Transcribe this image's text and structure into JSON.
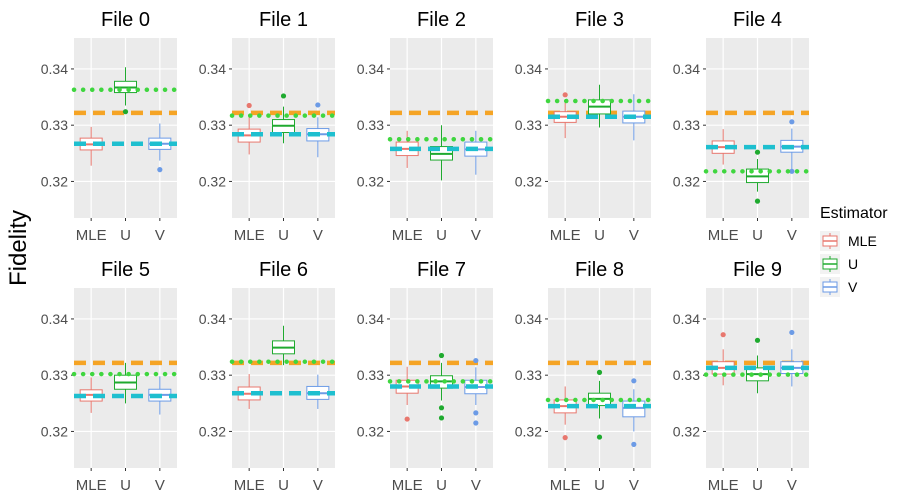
{
  "chart_data": {
    "type": "boxplot",
    "ylabel": "Fidelity",
    "xlabel": "",
    "categories": [
      "MLE",
      "U",
      "V"
    ],
    "ylim": [
      0.3135,
      0.3455
    ],
    "yticks": [
      0.32,
      0.33,
      0.34
    ],
    "ytick_labels": [
      "0.32",
      "0.33",
      "0.34"
    ],
    "legend": {
      "title": "Estimator",
      "position": "right",
      "items": [
        {
          "label": "MLE",
          "color": "#E8776E"
        },
        {
          "label": "U",
          "color": "#1FAA2F"
        },
        {
          "label": "V",
          "color": "#6C9BE6"
        }
      ]
    },
    "reference_lines": {
      "orange_dashed": {
        "color": "#F5A425"
      },
      "green_dotted": {
        "color": "#3FD63F"
      },
      "cyan_dashed": {
        "color": "#1EBFCF"
      }
    },
    "panels": [
      {
        "title": "File 0",
        "orange": 0.3322,
        "green": 0.3363,
        "cyan": 0.3267,
        "boxes": [
          {
            "q1": 0.3256,
            "median": 0.3266,
            "q3": 0.3277,
            "whisker_low": 0.3228,
            "whisker_high": 0.3297,
            "outliers": []
          },
          {
            "q1": 0.3358,
            "median": 0.3367,
            "q3": 0.3378,
            "whisker_low": 0.3335,
            "whisker_high": 0.3403,
            "outliers": [
              0.3324
            ]
          },
          {
            "q1": 0.3257,
            "median": 0.3267,
            "q3": 0.3277,
            "whisker_low": 0.3237,
            "whisker_high": 0.3303,
            "outliers": [
              0.3221
            ]
          }
        ]
      },
      {
        "title": "File 1",
        "orange": 0.3322,
        "green": 0.3317,
        "cyan": 0.3284,
        "boxes": [
          {
            "q1": 0.327,
            "median": 0.3282,
            "q3": 0.3293,
            "whisker_low": 0.3248,
            "whisker_high": 0.3318,
            "outliers": [
              0.3335
            ]
          },
          {
            "q1": 0.3287,
            "median": 0.3299,
            "q3": 0.331,
            "whisker_low": 0.3268,
            "whisker_high": 0.3333,
            "outliers": [
              0.3352
            ]
          },
          {
            "q1": 0.3272,
            "median": 0.3284,
            "q3": 0.3294,
            "whisker_low": 0.3243,
            "whisker_high": 0.3314,
            "outliers": [
              0.3336
            ]
          }
        ]
      },
      {
        "title": "File 2",
        "orange": 0.3322,
        "green": 0.3275,
        "cyan": 0.3258,
        "boxes": [
          {
            "q1": 0.3246,
            "median": 0.3258,
            "q3": 0.327,
            "whisker_low": 0.3224,
            "whisker_high": 0.329,
            "outliers": []
          },
          {
            "q1": 0.3238,
            "median": 0.3249,
            "q3": 0.3262,
            "whisker_low": 0.3202,
            "whisker_high": 0.33,
            "outliers": []
          },
          {
            "q1": 0.3245,
            "median": 0.3257,
            "q3": 0.327,
            "whisker_low": 0.3212,
            "whisker_high": 0.329,
            "outliers": []
          }
        ]
      },
      {
        "title": "File 3",
        "orange": 0.3322,
        "green": 0.3343,
        "cyan": 0.3315,
        "boxes": [
          {
            "q1": 0.3305,
            "median": 0.3315,
            "q3": 0.3324,
            "whisker_low": 0.3277,
            "whisker_high": 0.334,
            "outliers": [
              0.3354
            ]
          },
          {
            "q1": 0.332,
            "median": 0.3333,
            "q3": 0.3345,
            "whisker_low": 0.3296,
            "whisker_high": 0.3372,
            "outliers": []
          },
          {
            "q1": 0.3304,
            "median": 0.3315,
            "q3": 0.3325,
            "whisker_low": 0.3273,
            "whisker_high": 0.3355,
            "outliers": []
          }
        ]
      },
      {
        "title": "File 4",
        "orange": 0.3322,
        "green": 0.3218,
        "cyan": 0.3261,
        "boxes": [
          {
            "q1": 0.325,
            "median": 0.3261,
            "q3": 0.3272,
            "whisker_low": 0.323,
            "whisker_high": 0.3293,
            "outliers": []
          },
          {
            "q1": 0.3198,
            "median": 0.3209,
            "q3": 0.3222,
            "whisker_low": 0.3182,
            "whisker_high": 0.324,
            "outliers": [
              0.3165,
              0.3252
            ]
          },
          {
            "q1": 0.3252,
            "median": 0.3262,
            "q3": 0.3273,
            "whisker_low": 0.322,
            "whisker_high": 0.3294,
            "outliers": [
              0.3306,
              0.3218
            ]
          }
        ]
      },
      {
        "title": "File 5",
        "orange": 0.3322,
        "green": 0.3302,
        "cyan": 0.3263,
        "boxes": [
          {
            "q1": 0.3254,
            "median": 0.3265,
            "q3": 0.3274,
            "whisker_low": 0.3233,
            "whisker_high": 0.3296,
            "outliers": []
          },
          {
            "q1": 0.3275,
            "median": 0.3287,
            "q3": 0.33,
            "whisker_low": 0.325,
            "whisker_high": 0.3322,
            "outliers": []
          },
          {
            "q1": 0.3254,
            "median": 0.3265,
            "q3": 0.3275,
            "whisker_low": 0.323,
            "whisker_high": 0.3298,
            "outliers": []
          }
        ]
      },
      {
        "title": "File 6",
        "orange": 0.3322,
        "green": 0.3324,
        "cyan": 0.3268,
        "boxes": [
          {
            "q1": 0.3256,
            "median": 0.3267,
            "q3": 0.3279,
            "whisker_low": 0.324,
            "whisker_high": 0.3302,
            "outliers": []
          },
          {
            "q1": 0.3338,
            "median": 0.3349,
            "q3": 0.3361,
            "whisker_low": 0.3318,
            "whisker_high": 0.3388,
            "outliers": []
          },
          {
            "q1": 0.3257,
            "median": 0.3268,
            "q3": 0.328,
            "whisker_low": 0.324,
            "whisker_high": 0.3301,
            "outliers": []
          }
        ]
      },
      {
        "title": "File 7",
        "orange": 0.3322,
        "green": 0.3289,
        "cyan": 0.328,
        "boxes": [
          {
            "q1": 0.3268,
            "median": 0.328,
            "q3": 0.3291,
            "whisker_low": 0.3247,
            "whisker_high": 0.3315,
            "outliers": [
              0.3222
            ]
          },
          {
            "q1": 0.3277,
            "median": 0.3289,
            "q3": 0.3299,
            "whisker_low": 0.3255,
            "whisker_high": 0.3322,
            "outliers": [
              0.3335,
              0.3242,
              0.3224
            ]
          },
          {
            "q1": 0.3267,
            "median": 0.3279,
            "q3": 0.3291,
            "whisker_low": 0.3247,
            "whisker_high": 0.3314,
            "outliers": [
              0.3326,
              0.3233,
              0.3215
            ]
          }
        ]
      },
      {
        "title": "File 8",
        "orange": 0.3322,
        "green": 0.3256,
        "cyan": 0.3245,
        "boxes": [
          {
            "q1": 0.3233,
            "median": 0.3245,
            "q3": 0.3256,
            "whisker_low": 0.3212,
            "whisker_high": 0.328,
            "outliers": [
              0.3189
            ]
          },
          {
            "q1": 0.3246,
            "median": 0.3258,
            "q3": 0.3268,
            "whisker_low": 0.3223,
            "whisker_high": 0.329,
            "outliers": [
              0.3305,
              0.319
            ]
          },
          {
            "q1": 0.3226,
            "median": 0.3242,
            "q3": 0.3254,
            "whisker_low": 0.32,
            "whisker_high": 0.3275,
            "outliers": [
              0.329,
              0.3177
            ]
          }
        ]
      },
      {
        "title": "File 9",
        "orange": 0.3322,
        "green": 0.3301,
        "cyan": 0.3313,
        "boxes": [
          {
            "q1": 0.3302,
            "median": 0.3313,
            "q3": 0.3324,
            "whisker_low": 0.3282,
            "whisker_high": 0.3346,
            "outliers": [
              0.3372
            ]
          },
          {
            "q1": 0.329,
            "median": 0.3302,
            "q3": 0.3313,
            "whisker_low": 0.3268,
            "whisker_high": 0.3335,
            "outliers": [
              0.3362
            ]
          },
          {
            "q1": 0.3303,
            "median": 0.3313,
            "q3": 0.3324,
            "whisker_low": 0.328,
            "whisker_high": 0.3346,
            "outliers": [
              0.3376
            ]
          }
        ]
      }
    ]
  }
}
